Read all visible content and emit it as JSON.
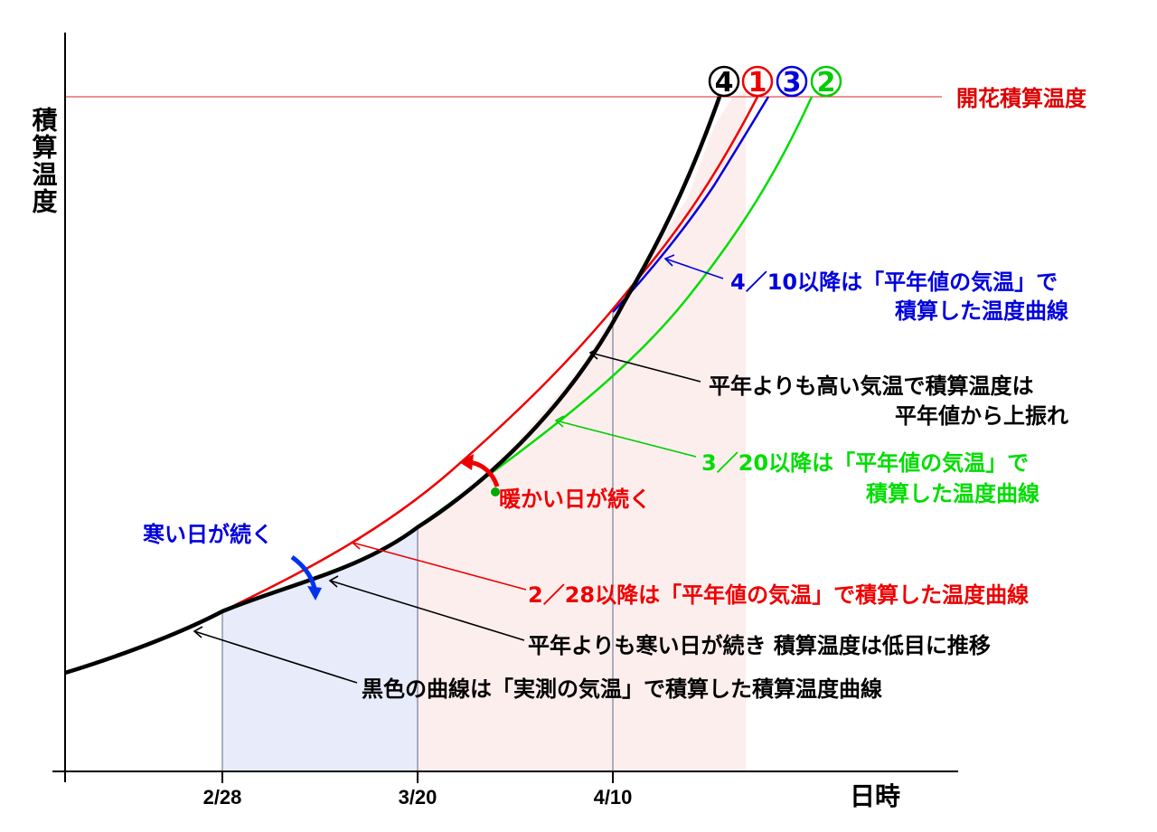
{
  "axes": {
    "y_label": "積算温度",
    "x_label": "日時",
    "x_ticks": [
      "2/28",
      "3/20",
      "4/10"
    ]
  },
  "threshold": {
    "label": "開花積算温度",
    "color": "#dd0000"
  },
  "curve_numbers": [
    {
      "text": "4",
      "color": "#000000"
    },
    {
      "text": "1",
      "color": "#ee0000"
    },
    {
      "text": "3",
      "color": "#0000dd"
    },
    {
      "text": "2",
      "color": "#00cc00"
    }
  ],
  "annotations": {
    "blue_line1": "4／10以降は「平年値の気温」で",
    "blue_line2": "積算した温度曲線",
    "black_high_line1": "平年よりも高い気温で積算温度は",
    "black_high_line2": "平年値から上振れ",
    "green_line1": "3／20以降は「平年値の気温」で",
    "green_line2": "積算した温度曲線",
    "warm": "暖かい日が続く",
    "cold": "寒い日が続く",
    "red": "2／28以降は「平年値の気温」で積算した温度曲線",
    "black_low": "平年よりも寒い日が続き 積算温度は低目に推移",
    "black_measured": "黒色の曲線は「実測の気温」で積算した積算温度曲線"
  },
  "colors": {
    "black": "#000000",
    "red": "#ee0000",
    "blue": "#0000dd",
    "green": "#00dd00",
    "blue_fill": "#e8ecfa",
    "pink_fill": "#fdeeee"
  }
}
